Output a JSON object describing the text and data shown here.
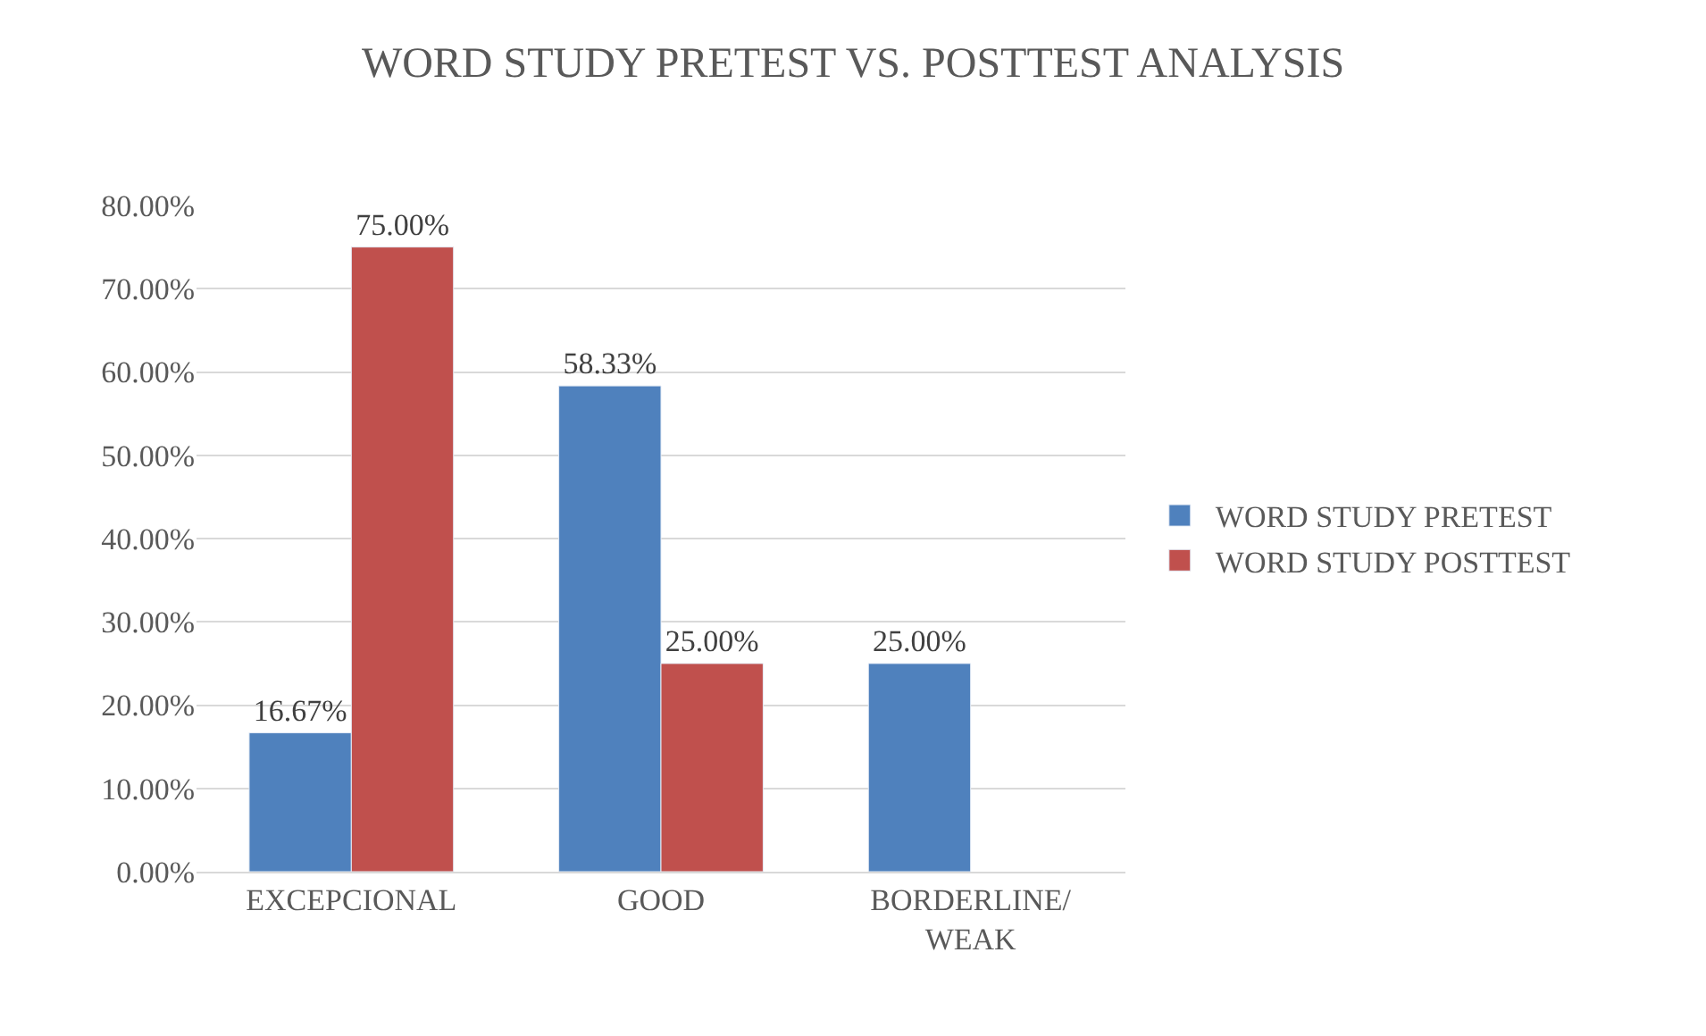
{
  "chart_data": {
    "type": "bar",
    "title": "WORD STUDY PRETEST VS. POSTTEST ANALYSIS",
    "categories": [
      "EXCEPCIONAL",
      "GOOD",
      "BORDERLINE/\nWEAK"
    ],
    "series": [
      {
        "name": "WORD STUDY PRETEST",
        "color": "#4f81bd",
        "values": [
          16.67,
          58.33,
          25
        ],
        "value_labels": [
          "16.67%",
          "58.33%",
          "25.00%"
        ]
      },
      {
        "name": "WORD STUDY POSTTEST",
        "color": "#c0504d",
        "values": [
          75,
          25,
          null
        ],
        "value_labels": [
          "75.00%",
          "25.00%",
          null
        ]
      }
    ],
    "ylim": [
      0,
      80
    ],
    "yticks": [
      {
        "value": 0,
        "label": "0.00%"
      },
      {
        "value": 10,
        "label": "10.00%"
      },
      {
        "value": 20,
        "label": "20.00%"
      },
      {
        "value": 30,
        "label": "30.00%"
      },
      {
        "value": 40,
        "label": "40.00%"
      },
      {
        "value": 50,
        "label": "50.00%"
      },
      {
        "value": 60,
        "label": "60.00%"
      },
      {
        "value": 70,
        "label": "70.00%"
      },
      {
        "value": 80,
        "label": "80.00%"
      }
    ],
    "grid": "y",
    "legend": "right"
  }
}
